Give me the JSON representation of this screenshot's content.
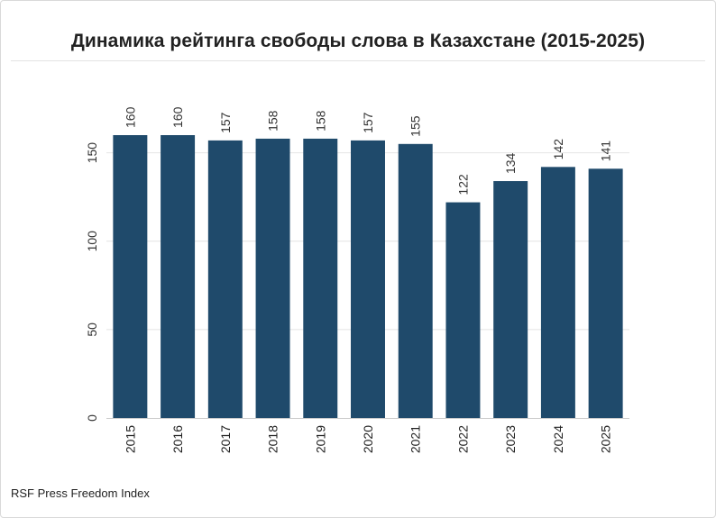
{
  "title": "Динамика рейтинга свободы слова в Казахстане (2015-2025)",
  "source": "RSF Press Freedom Index",
  "colors": {
    "bar": "#1f4a6b",
    "grid": "#e4e4e4",
    "axis": "#cccccc"
  },
  "chart_data": {
    "type": "bar",
    "title": "Динамика рейтинга свободы слова в Казахстане (2015-2025)",
    "xlabel": "",
    "ylabel": "",
    "categories": [
      "2015",
      "2016",
      "2017",
      "2018",
      "2019",
      "2020",
      "2021",
      "2022",
      "2023",
      "2024",
      "2025"
    ],
    "values": [
      160,
      160,
      157,
      158,
      158,
      157,
      155,
      122,
      134,
      142,
      141
    ],
    "ylim": [
      0,
      160
    ],
    "yticks": [
      0,
      50,
      100,
      150
    ],
    "grid": true,
    "data_labels": true,
    "legend": "none"
  }
}
